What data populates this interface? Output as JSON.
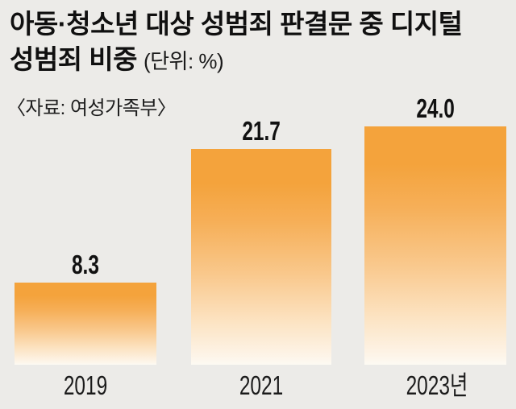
{
  "background_color": "#ECEBE8",
  "header": {
    "title_line1": "아동·청소년 대상 성범죄 판결문 중 디지털",
    "title_line2": "성범죄 비중",
    "unit_note": "(단위: %)",
    "source": "〈자료: 여성가족부〉"
  },
  "chart_data": {
    "type": "bar",
    "title": "아동·청소년 대상 성범죄 판결문 중 디지털 성범죄 비중",
    "unit": "%",
    "source_label": "〈자료: 여성가족부〉",
    "categories": [
      "2019",
      "2021",
      "2023년"
    ],
    "values": [
      8.3,
      21.7,
      24.0
    ],
    "value_labels": [
      "8.3",
      "21.7",
      "24.0"
    ],
    "ylim": [
      0,
      24
    ],
    "grid": false,
    "legend": false,
    "bar_color_top": "#F4A33C",
    "bar_color_bottom": "#FDFAF3",
    "text_color": "#111111"
  }
}
